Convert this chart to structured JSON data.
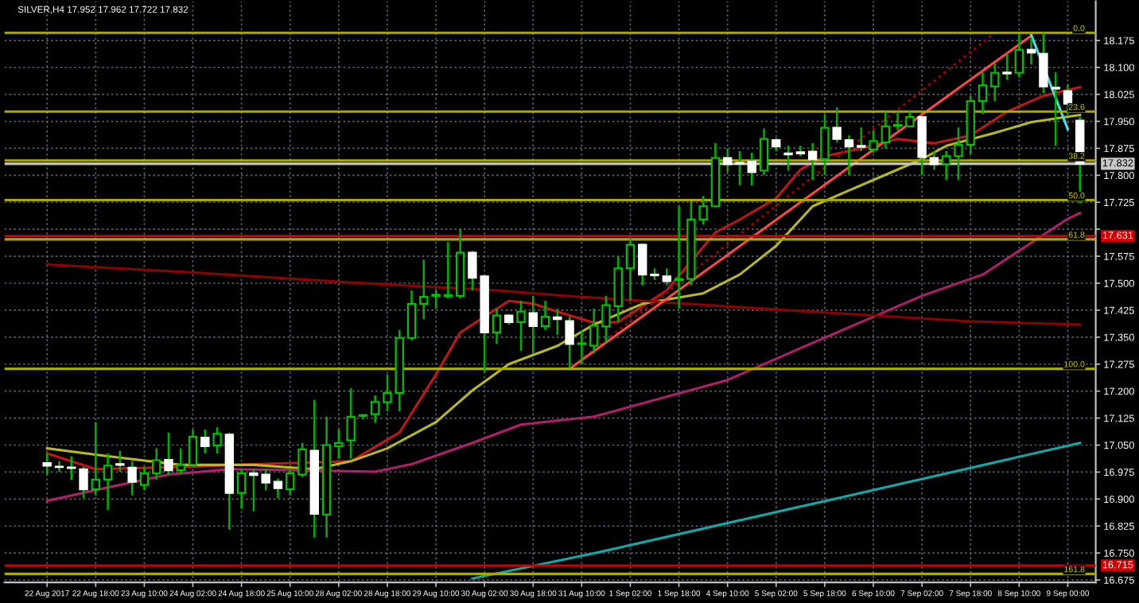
{
  "chart_data": {
    "type": "candlestick",
    "title": "SILVER,H4 17.952 17.962 17.722 17.832",
    "categories": [
      "22 Aug 2017",
      null,
      null,
      null,
      "22 Aug 18:00",
      null,
      null,
      null,
      "23 Aug 10:00",
      null,
      null,
      null,
      "24 Aug 02:00",
      null,
      null,
      null,
      "24 Aug 18:00",
      null,
      null,
      null,
      "25 Aug 10:00",
      null,
      null,
      null,
      "28 Aug 02:00",
      null,
      null,
      null,
      "28 Aug 18:00",
      null,
      null,
      null,
      "29 Aug 10:00",
      null,
      null,
      null,
      "30 Aug 02:00",
      null,
      null,
      null,
      "30 Aug 18:00",
      null,
      null,
      null,
      "31 Aug 10:00",
      null,
      null,
      null,
      "1 Sep 02:00",
      null,
      null,
      null,
      "1 Sep 18:00",
      null,
      null,
      null,
      "4 Sep 10:00",
      null,
      null,
      null,
      "5 Sep 02:00",
      null,
      null,
      null,
      "5 Sep 18:00",
      null,
      null,
      null,
      "6 Sep 10:00",
      null,
      null,
      null,
      "7 Sep 02:00",
      null,
      null,
      null,
      "7 Sep 18:00",
      null,
      null,
      null,
      "8 Sep 10:00",
      null,
      null,
      null,
      "9 Sep 00:00",
      null
    ],
    "ohlc": [
      [
        17.0,
        17.027,
        16.968,
        16.993
      ],
      [
        16.99,
        17.005,
        16.976,
        16.989
      ],
      [
        16.988,
        17.019,
        16.954,
        16.986
      ],
      [
        16.983,
        16.99,
        16.902,
        16.927
      ],
      [
        16.927,
        17.114,
        16.91,
        16.954
      ],
      [
        16.954,
        17.027,
        16.869,
        16.993
      ],
      [
        16.997,
        17.034,
        16.976,
        16.995
      ],
      [
        16.987,
        17.005,
        16.91,
        16.948
      ],
      [
        16.939,
        16.99,
        16.924,
        16.971
      ],
      [
        16.971,
        17.041,
        16.954,
        17.008
      ],
      [
        17.009,
        17.085,
        16.968,
        16.98
      ],
      [
        16.98,
        17.041,
        16.968,
        16.995
      ],
      [
        16.995,
        17.093,
        16.99,
        17.073
      ],
      [
        17.071,
        17.093,
        17.027,
        17.047
      ],
      [
        17.049,
        17.1,
        17.027,
        17.081
      ],
      [
        17.079,
        17.085,
        16.815,
        16.917
      ],
      [
        16.917,
        16.983,
        16.873,
        16.971
      ],
      [
        16.971,
        16.983,
        16.866,
        16.967
      ],
      [
        16.968,
        16.983,
        16.924,
        16.946
      ],
      [
        16.948,
        16.957,
        16.902,
        16.93
      ],
      [
        16.927,
        16.983,
        16.91,
        16.971
      ],
      [
        16.968,
        17.056,
        16.961,
        17.038
      ],
      [
        17.034,
        17.176,
        16.793,
        16.859
      ],
      [
        16.857,
        17.129,
        16.793,
        17.05
      ],
      [
        17.047,
        17.093,
        17.012,
        17.056
      ],
      [
        17.063,
        17.208,
        17.012,
        17.129
      ],
      [
        17.131,
        17.136,
        17.122,
        17.133
      ],
      [
        17.136,
        17.188,
        17.112,
        17.17
      ],
      [
        17.169,
        17.246,
        17.144,
        17.195
      ],
      [
        17.195,
        17.37,
        17.144,
        17.348
      ],
      [
        17.348,
        17.48,
        17.341,
        17.443
      ],
      [
        17.443,
        17.565,
        17.4,
        17.462
      ],
      [
        17.465,
        17.48,
        17.429,
        17.468
      ],
      [
        17.464,
        17.614,
        17.458,
        17.467
      ],
      [
        17.465,
        17.652,
        17.458,
        17.585
      ],
      [
        17.585,
        17.59,
        17.48,
        17.515
      ],
      [
        17.519,
        17.524,
        17.253,
        17.363
      ],
      [
        17.363,
        17.429,
        17.331,
        17.41
      ],
      [
        17.41,
        17.414,
        17.385,
        17.392
      ],
      [
        17.392,
        17.451,
        17.312,
        17.421
      ],
      [
        17.417,
        17.465,
        17.305,
        17.381
      ],
      [
        17.381,
        17.451,
        17.37,
        17.407
      ],
      [
        17.405,
        17.429,
        17.356,
        17.4
      ],
      [
        17.395,
        17.407,
        17.264,
        17.331
      ],
      [
        17.331,
        17.37,
        17.275,
        17.333
      ],
      [
        17.326,
        17.429,
        17.304,
        17.382
      ],
      [
        17.38,
        17.465,
        17.334,
        17.439
      ],
      [
        17.436,
        17.575,
        17.392,
        17.541
      ],
      [
        17.541,
        17.626,
        17.451,
        17.607
      ],
      [
        17.607,
        17.611,
        17.494,
        17.524
      ],
      [
        17.524,
        17.541,
        17.509,
        17.522
      ],
      [
        17.519,
        17.541,
        17.494,
        17.506
      ],
      [
        17.509,
        17.714,
        17.429,
        17.512
      ],
      [
        17.512,
        17.728,
        17.494,
        17.677
      ],
      [
        17.677,
        17.743,
        17.663,
        17.714
      ],
      [
        17.714,
        17.889,
        17.711,
        17.848
      ],
      [
        17.848,
        17.875,
        17.809,
        17.831
      ],
      [
        17.835,
        17.867,
        17.772,
        17.832
      ],
      [
        17.838,
        17.863,
        17.772,
        17.809
      ],
      [
        17.813,
        17.93,
        17.801,
        17.901
      ],
      [
        17.898,
        17.904,
        17.867,
        17.88
      ],
      [
        17.861,
        17.882,
        17.813,
        17.858
      ],
      [
        17.864,
        17.882,
        17.853,
        17.861
      ],
      [
        17.866,
        17.889,
        17.787,
        17.845
      ],
      [
        17.845,
        17.97,
        17.801,
        17.932
      ],
      [
        17.932,
        17.989,
        17.892,
        17.901
      ],
      [
        17.898,
        17.911,
        17.801,
        17.88
      ],
      [
        17.882,
        17.933,
        17.867,
        17.879
      ],
      [
        17.872,
        17.926,
        17.863,
        17.895
      ],
      [
        17.892,
        17.977,
        17.875,
        17.936
      ],
      [
        17.937,
        17.977,
        17.926,
        17.94
      ],
      [
        17.936,
        17.977,
        17.933,
        17.962
      ],
      [
        17.962,
        17.965,
        17.801,
        17.851
      ],
      [
        17.848,
        17.867,
        17.816,
        17.831
      ],
      [
        17.831,
        17.867,
        17.787,
        17.853
      ],
      [
        17.853,
        17.933,
        17.787,
        17.885
      ],
      [
        17.885,
        18.021,
        17.86,
        18.006
      ],
      [
        18.006,
        18.086,
        17.97,
        18.05
      ],
      [
        18.047,
        18.111,
        18.006,
        18.085
      ],
      [
        18.086,
        18.138,
        18.065,
        18.083
      ],
      [
        18.085,
        18.193,
        18.072,
        18.149
      ],
      [
        18.149,
        18.182,
        18.108,
        18.141
      ],
      [
        18.138,
        18.196,
        18.028,
        18.047
      ],
      [
        18.044,
        18.086,
        17.882,
        18.041
      ],
      [
        18.034,
        18.052,
        17.968,
        17.999
      ],
      [
        17.952,
        17.962,
        17.722,
        17.832
      ]
    ],
    "colors": [
      "#ffffff",
      "#ffffff",
      "#ffffff",
      "#ffffff",
      "#00c000",
      "#00c000",
      "#ffffff",
      "#ffffff",
      "#00c000",
      "#00c000",
      "#ffffff",
      "#00c000",
      "#00c000",
      "#ffffff",
      "#00c000",
      "#ffffff",
      "#00c000",
      "#ffffff",
      "#ffffff",
      "#ffffff",
      "#00c000",
      "#00c000",
      "#ffffff",
      "#00c000",
      "#00c000",
      "#00c000",
      "#00c000",
      "#00c000",
      "#00c000",
      "#00c000",
      "#00c000",
      "#00c000",
      "#00c000",
      "#00c000",
      "#00c000",
      "#ffffff",
      "#ffffff",
      "#00c000",
      "#ffffff",
      "#00c000",
      "#ffffff",
      "#00c000",
      "#ffffff",
      "#ffffff",
      "#00c000",
      "#00c000",
      "#00c000",
      "#00c000",
      "#00c000",
      "#ffffff",
      "#ffffff",
      "#ffffff",
      "#00c000",
      "#00c000",
      "#00c000",
      "#00c000",
      "#ffffff",
      "#ffffff",
      "#ffffff",
      "#00c000",
      "#ffffff",
      "#ffffff",
      "#ffffff",
      "#ffffff",
      "#00c000",
      "#ffffff",
      "#ffffff",
      "#ffffff",
      "#00c000",
      "#00c000",
      "#00c000",
      "#00c000",
      "#ffffff",
      "#ffffff",
      "#00c000",
      "#00c000",
      "#00c000",
      "#00c000",
      "#00c000",
      "#ffffff",
      "#00c000",
      "#ffffff",
      "#ffffff",
      "#ffffff",
      "#ffffff",
      "#ffffff"
    ],
    "series": [
      {
        "type": "line",
        "color": "#c01818",
        "values": [
          17.027,
          null,
          null,
          null,
          16.983,
          null,
          null,
          null,
          null,
          null,
          null,
          null,
          16.99,
          null,
          null,
          null,
          null,
          16.997,
          null,
          null,
          null,
          null,
          null,
          null,
          null,
          17.005,
          null,
          null,
          null,
          17.085,
          null,
          null,
          17.246,
          null,
          17.363,
          null,
          17.407,
          null,
          17.451,
          null,
          17.443,
          null,
          17.421,
          null,
          null,
          17.39,
          null,
          17.392,
          null,
          null,
          null,
          17.48,
          null,
          null,
          null,
          17.641,
          null,
          17.677,
          null,
          null,
          17.736,
          null,
          17.816,
          null,
          17.853,
          null,
          null,
          17.875,
          null,
          null,
          17.901,
          null,
          null,
          17.889,
          null,
          null,
          17.911,
          null,
          null,
          17.977,
          null,
          null,
          18.021,
          null,
          null,
          18.045
        ]
      },
      {
        "type": "line",
        "color": "#b8b820",
        "values": [
          17.041,
          null,
          null,
          null,
          null,
          17.019,
          null,
          null,
          null,
          null,
          null,
          16.995,
          null,
          null,
          null,
          null,
          null,
          16.995,
          null,
          null,
          null,
          null,
          16.983,
          null,
          null,
          17.005,
          null,
          null,
          17.041,
          null,
          null,
          null,
          17.114,
          null,
          null,
          17.202,
          null,
          null,
          17.275,
          null,
          null,
          null,
          17.326,
          null,
          null,
          17.385,
          null,
          null,
          null,
          17.443,
          null,
          null,
          null,
          null,
          17.472,
          null,
          null,
          17.524,
          null,
          null,
          17.604,
          null,
          null,
          17.714,
          null,
          null,
          17.758,
          null,
          17.787,
          null,
          null,
          null,
          17.845,
          null,
          17.882,
          null,
          null,
          null,
          17.918,
          null,
          null,
          17.948,
          null,
          null,
          null,
          17.968
        ]
      },
      {
        "type": "line",
        "color": "#b0206a",
        "values": [
          16.895,
          null,
          null,
          null,
          null,
          16.932,
          null,
          null,
          null,
          null,
          16.968,
          null,
          null,
          null,
          null,
          16.983,
          null,
          null,
          null,
          null,
          null,
          16.98,
          null,
          null,
          null,
          null,
          null,
          16.976,
          null,
          null,
          16.997,
          null,
          null,
          null,
          null,
          17.056,
          null,
          null,
          null,
          17.107,
          null,
          null,
          null,
          null,
          null,
          17.129,
          null,
          null,
          null,
          null,
          null,
          null,
          null,
          null,
          null,
          null,
          17.231,
          null,
          null,
          null,
          null,
          null,
          null,
          17.334,
          null,
          null,
          null,
          null,
          null,
          null,
          null,
          null,
          17.465,
          null,
          null,
          null,
          null,
          17.524,
          null,
          null,
          null,
          null,
          null,
          null,
          17.679,
          17.695
        ]
      },
      {
        "type": "line",
        "color": "#8b0000",
        "values": [
          17.552,
          null,
          null,
          null,
          null,
          null,
          null,
          null,
          null,
          null,
          null,
          null,
          17.53,
          null,
          null,
          null,
          null,
          null,
          null,
          null,
          null,
          null,
          null,
          null,
          null,
          17.502,
          null,
          null,
          null,
          null,
          null,
          null,
          null,
          null,
          null,
          null,
          null,
          17.48,
          null,
          null,
          null,
          null,
          null,
          17.464,
          null,
          null,
          null,
          null,
          null,
          null,
          null,
          null,
          null,
          null,
          null,
          null,
          null,
          null,
          null,
          17.429,
          null,
          null,
          null,
          null,
          null,
          null,
          null,
          null,
          null,
          null,
          null,
          null,
          null,
          null,
          null,
          null,
          17.394,
          null,
          null,
          null,
          null,
          null,
          null,
          null,
          null,
          17.385
        ]
      },
      {
        "type": "line",
        "color": "#10a8a8",
        "values": [
          null,
          null,
          null,
          null,
          null,
          null,
          null,
          null,
          null,
          null,
          null,
          null,
          null,
          null,
          null,
          null,
          null,
          null,
          null,
          null,
          null,
          null,
          null,
          null,
          null,
          null,
          null,
          null,
          null,
          null,
          null,
          null,
          null,
          null,
          null,
          16.679,
          null,
          null,
          null,
          null,
          null,
          null,
          null,
          null,
          null,
          16.749,
          null,
          null,
          null,
          null,
          null,
          null,
          null,
          null,
          null,
          null,
          null,
          null,
          null,
          null,
          null,
          null,
          null,
          null,
          null,
          16.902,
          null,
          null,
          null,
          null,
          null,
          null,
          null,
          null,
          null,
          null,
          null,
          null,
          null,
          null,
          null,
          null,
          null,
          null,
          null,
          17.056
        ]
      },
      {
        "type": "line",
        "color": "#a00000",
        "line_style": "dotted",
        "values": [
          null,
          null,
          null,
          null,
          null,
          null,
          null,
          null,
          null,
          null,
          null,
          null,
          null,
          null,
          null,
          null,
          null,
          null,
          null,
          null,
          null,
          null,
          null,
          null,
          null,
          null,
          null,
          null,
          null,
          null,
          null,
          null,
          null,
          null,
          null,
          null,
          null,
          null,
          null,
          null,
          null,
          null,
          null,
          17.262,
          null,
          null,
          null,
          null,
          null,
          null,
          null,
          null,
          null,
          null,
          null,
          null,
          null,
          null,
          null,
          null,
          null,
          null,
          null,
          null,
          null,
          null,
          null,
          null,
          null,
          null,
          null,
          null,
          null,
          null,
          null,
          null,
          null,
          null,
          18.196,
          null,
          null,
          null,
          null,
          null,
          null,
          null
        ]
      },
      {
        "type": "line",
        "color": "#ff4848",
        "values": [
          null,
          null,
          null,
          null,
          null,
          null,
          null,
          null,
          null,
          null,
          null,
          null,
          null,
          null,
          null,
          null,
          null,
          null,
          null,
          null,
          null,
          null,
          null,
          null,
          null,
          null,
          null,
          null,
          null,
          null,
          null,
          null,
          null,
          null,
          null,
          null,
          null,
          null,
          null,
          null,
          null,
          null,
          null,
          17.262,
          null,
          null,
          null,
          null,
          null,
          null,
          null,
          null,
          null,
          null,
          null,
          null,
          null,
          null,
          null,
          null,
          null,
          null,
          null,
          null,
          null,
          null,
          null,
          null,
          null,
          null,
          null,
          null,
          null,
          null,
          null,
          null,
          null,
          null,
          null,
          null,
          null,
          18.188,
          null,
          null,
          null,
          null
        ]
      },
      {
        "type": "line",
        "color": "#40e0e8",
        "values": [
          null,
          null,
          null,
          null,
          null,
          null,
          null,
          null,
          null,
          null,
          null,
          null,
          null,
          null,
          null,
          null,
          null,
          null,
          null,
          null,
          null,
          null,
          null,
          null,
          null,
          null,
          null,
          null,
          null,
          null,
          null,
          null,
          null,
          null,
          null,
          null,
          null,
          null,
          null,
          null,
          null,
          null,
          null,
          null,
          null,
          null,
          null,
          null,
          null,
          null,
          null,
          null,
          null,
          null,
          null,
          null,
          null,
          null,
          null,
          null,
          null,
          null,
          null,
          null,
          null,
          null,
          null,
          null,
          null,
          null,
          null,
          null,
          null,
          null,
          null,
          null,
          null,
          null,
          null,
          null,
          null,
          18.19,
          null,
          null,
          17.928,
          null
        ]
      }
    ],
    "ref_lines": [
      {
        "axis": "y",
        "value": 18.196,
        "color": "#a8a800"
      },
      {
        "axis": "y",
        "value": 17.977,
        "color": "#a8a800"
      },
      {
        "axis": "y",
        "value": 17.841,
        "color": "#a8a800"
      },
      {
        "axis": "y",
        "value": 17.731,
        "color": "#a8a800"
      },
      {
        "axis": "y",
        "value": 17.622,
        "color": "#a8a800"
      },
      {
        "axis": "y",
        "value": 17.262,
        "color": "#a8a800"
      },
      {
        "axis": "y",
        "value": 16.692,
        "color": "#a8a800"
      },
      {
        "axis": "y",
        "value": 17.832,
        "color": "#c8c8c8",
        "label": "17.832"
      },
      {
        "axis": "y",
        "value": 17.631,
        "color": "#d00000",
        "label": "17.631"
      },
      {
        "axis": "y",
        "value": 16.715,
        "color": "#d00000",
        "label": "16.715"
      }
    ],
    "annotations": [
      {
        "text": "0.0",
        "y": 18.196
      },
      {
        "text": "23.6",
        "y": 17.977
      },
      {
        "text": "38.2",
        "y": 17.841
      },
      {
        "text": "50.0",
        "y": 17.731
      },
      {
        "text": "61.8",
        "y": 17.622
      },
      {
        "text": "100.0",
        "y": 17.262
      },
      {
        "text": "161.8",
        "y": 16.692
      }
    ],
    "ylim": [
      16.668,
      18.284
    ],
    "yticks": [
      {
        "value": 16.675,
        "label": "16.675"
      },
      {
        "value": 16.75,
        "label": "16.750"
      },
      {
        "value": 16.825,
        "label": "16.825"
      },
      {
        "value": 16.9,
        "label": "16.900"
      },
      {
        "value": 16.975,
        "label": "16.975"
      },
      {
        "value": 17.05,
        "label": "17.050"
      },
      {
        "value": 17.125,
        "label": "17.125"
      },
      {
        "value": 17.2,
        "label": "17.200"
      },
      {
        "value": 17.275,
        "label": "17.275"
      },
      {
        "value": 17.35,
        "label": "17.350"
      },
      {
        "value": 17.425,
        "label": "17.425"
      },
      {
        "value": 17.5,
        "label": "17.500"
      },
      {
        "value": 17.575,
        "label": "17.575"
      },
      {
        "value": 17.65,
        "label": null
      },
      {
        "value": 17.725,
        "label": "17.725"
      },
      {
        "value": 17.8,
        "label": "17.800"
      },
      {
        "value": 17.875,
        "label": "17.875"
      },
      {
        "value": 17.95,
        "label": "17.950"
      },
      {
        "value": 18.025,
        "label": "18.025"
      },
      {
        "value": 18.1,
        "label": "18.100"
      },
      {
        "value": 18.175,
        "label": "18.175"
      }
    ],
    "grid": true
  }
}
